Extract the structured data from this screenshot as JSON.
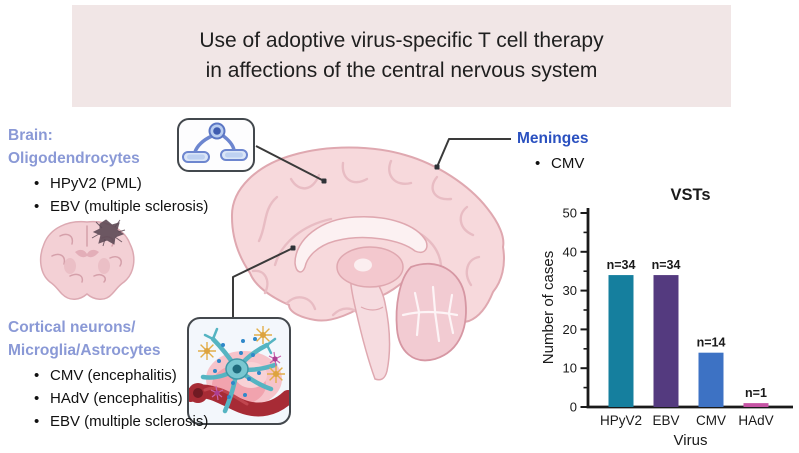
{
  "banner": {
    "line1": "Use of adoptive virus-specific T cell therapy",
    "line2": "in affections of the central nervous system"
  },
  "labels": {
    "brain_oligodendrocytes": {
      "title_line1": "Brain:",
      "title_line2": "Oligodendrocytes",
      "items": [
        "HPyV2 (PML)",
        "EBV (multiple sclerosis)"
      ]
    },
    "cortical": {
      "title_line1": "Cortical neurons/",
      "title_line2": "Microglia/Astrocytes",
      "items": [
        "CMV (encephalitis)",
        "HAdV (encephalitis)",
        "EBV (multiple sclerosis)"
      ]
    },
    "meninges": {
      "title": "Meninges",
      "items": [
        "CMV"
      ]
    }
  },
  "illustrations": {
    "center": "brain-sagittal-illustration",
    "left": "brain-coronal-section-illustration",
    "top_callout": "oligodendrocyte-myelin-illustration",
    "bottom_callout": "neurons-microglia-astrocytes-illustration"
  },
  "colors": {
    "banner_bg": "#f1e6e6",
    "heading_periwinkle": "#8a99d6",
    "meninges_blue": "#2b51c0",
    "text": "#141414",
    "callout_line": "#3a3a3a"
  },
  "chart_data": {
    "type": "bar",
    "title": "VSTs",
    "xlabel": "Virus",
    "ylabel": "Number of cases",
    "categories": [
      "HPyV2",
      "EBV",
      "CMV",
      "HAdV"
    ],
    "values": [
      34,
      34,
      14,
      1
    ],
    "bar_labels": [
      "n=34",
      "n=34",
      "n=14",
      "n=1"
    ],
    "bar_colors": [
      "#157f9e",
      "#543a7f",
      "#3d72c4",
      "#c553a4"
    ],
    "yticks": [
      0,
      10,
      20,
      30,
      40,
      50
    ],
    "ylim": [
      0,
      52
    ],
    "grid": false,
    "legend": "none"
  }
}
